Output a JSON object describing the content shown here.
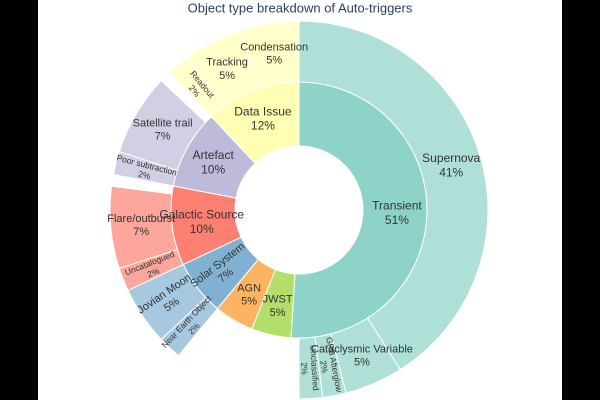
{
  "chart_data": {
    "type": "sunburst",
    "title": "Object type breakdown of Auto-triggers",
    "inner": [
      {
        "label": "Transient",
        "percent": "51%",
        "value": 51,
        "color": "#8dd3c7"
      },
      {
        "label": "JWST",
        "percent": "5%",
        "value": 5,
        "color": "#b3de69"
      },
      {
        "label": "AGN",
        "percent": "5%",
        "value": 5,
        "color": "#fdb462"
      },
      {
        "label": "Solar System",
        "percent": "7%",
        "value": 7,
        "color": "#80b1d3"
      },
      {
        "label": "Galactic Source",
        "percent": "10%",
        "value": 10,
        "color": "#fb8072"
      },
      {
        "label": "Artefact",
        "percent": "10%",
        "value": 10,
        "color": "#bebada"
      },
      {
        "label": "Data Issue",
        "percent": "12%",
        "value": 12,
        "color": "#ffffb3"
      }
    ],
    "outer": [
      {
        "label": "Supernova",
        "percent": "41%",
        "value": 41,
        "parent": "Transient"
      },
      {
        "label": "Cataclysmic Variable",
        "percent": "5%",
        "value": 5,
        "parent": "Transient"
      },
      {
        "label": "GRB Afterglow",
        "percent": "2%",
        "value": 2,
        "parent": "Transient"
      },
      {
        "label": "Unclassified",
        "percent": "2%",
        "value": 2,
        "parent": "Transient"
      },
      {
        "label": "Near Earth Object",
        "percent": "2%",
        "value": 2,
        "parent": "Solar System"
      },
      {
        "label": "Jovian Moon",
        "percent": "5%",
        "value": 5,
        "parent": "Solar System"
      },
      {
        "label": "Uncatalogued",
        "percent": "2%",
        "value": 2,
        "parent": "Galactic Source"
      },
      {
        "label": "Flare/outburst",
        "percent": "7%",
        "value": 7,
        "parent": "Galactic Source"
      },
      {
        "label": "Poor subtraction",
        "percent": "2%",
        "value": 2,
        "parent": "Artefact"
      },
      {
        "label": "Satellite trail",
        "percent": "7%",
        "value": 7,
        "parent": "Artefact"
      },
      {
        "label": "Readout",
        "percent": "2%",
        "value": 2,
        "parent": "Data Issue"
      },
      {
        "label": "Tracking",
        "percent": "5%",
        "value": 5,
        "parent": "Data Issue"
      },
      {
        "label": "Condensation",
        "percent": "5%",
        "value": 5,
        "parent": "Data Issue"
      }
    ]
  }
}
